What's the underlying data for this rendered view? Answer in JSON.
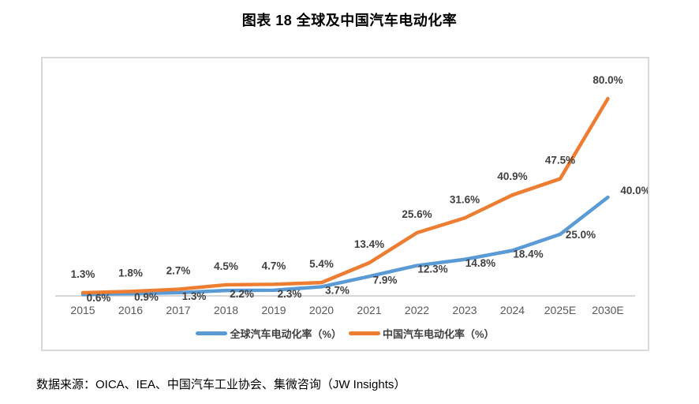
{
  "page": {
    "title": "图表 18 全球及中国汽车电动化率",
    "source_note": "数据来源：OICA、IEA、中国汽车工业协会、集微咨询（JW Insights）"
  },
  "chart_data": {
    "type": "line",
    "title": "图表 18 全球及中国汽车电动化率",
    "categories": [
      "2015",
      "2016",
      "2017",
      "2018",
      "2019",
      "2020",
      "2021",
      "2022",
      "2023",
      "2024",
      "2025E",
      "2030E"
    ],
    "series": [
      {
        "name": "全球汽车电动化率（%）",
        "color": "#5B9BD5",
        "values": [
          0.6,
          0.9,
          1.3,
          2.2,
          2.3,
          3.7,
          7.9,
          12.3,
          14.8,
          18.4,
          25.0,
          40.0
        ],
        "labels": [
          "0.6%",
          "0.9%",
          "1.3%",
          "2.2%",
          "2.3%",
          "3.7%",
          "7.9%",
          "12.3%",
          "14.8%",
          "18.4%",
          "25.0%",
          "40.0%"
        ]
      },
      {
        "name": "中国汽车电动化率（%）",
        "color": "#ED7D31",
        "values": [
          1.3,
          1.8,
          2.7,
          4.5,
          4.7,
          5.4,
          13.4,
          25.6,
          31.6,
          40.9,
          47.5,
          80.0
        ],
        "labels": [
          "1.3%",
          "1.8%",
          "2.7%",
          "4.5%",
          "4.7%",
          "5.4%",
          "13.4%",
          "25.6%",
          "31.6%",
          "40.9%",
          "47.5%",
          "80.0%"
        ]
      }
    ],
    "ylim": [
      0,
      96
    ],
    "grid": false,
    "y_axis_visible": false,
    "legend_position": "bottom",
    "axis_color": "#d6d6d6",
    "data_label_color": "#3f3f3f",
    "tick_label_color": "#595959"
  }
}
